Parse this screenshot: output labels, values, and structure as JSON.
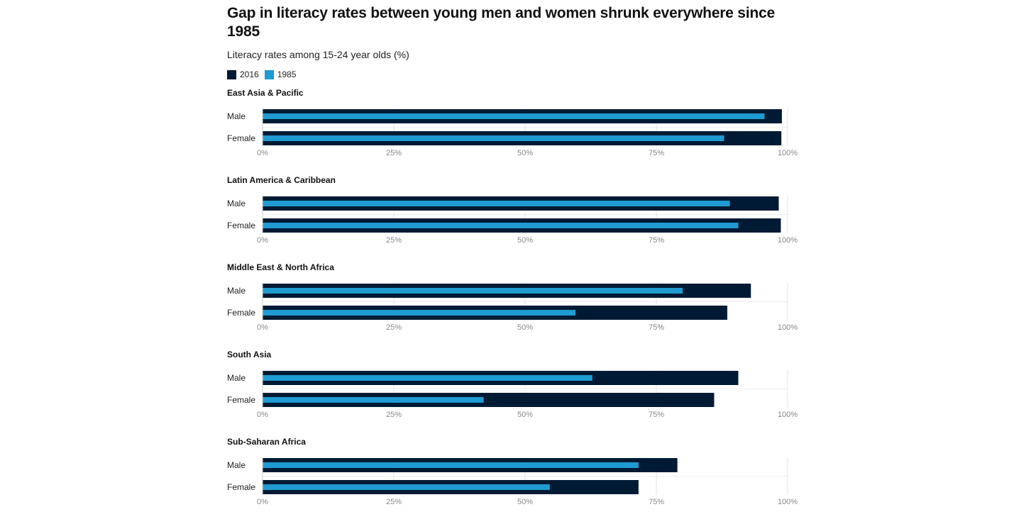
{
  "title": "Gap in literacy rates between young men and women shrunk everywhere since 1985",
  "subtitle": "Literacy rates among 15-24 year olds (%)",
  "colors": {
    "2016": "#001a33",
    "1985": "#1f9bd1",
    "grid": "#e4e4e4",
    "tick": "#888888"
  },
  "legend": [
    {
      "label": "2016",
      "color": "#001a33"
    },
    {
      "label": "1985",
      "color": "#1f9bd1"
    }
  ],
  "chart_data": [
    {
      "type": "bar",
      "title": "East Asia & Pacific",
      "categories": [
        "Male",
        "Female"
      ],
      "series": [
        {
          "name": "2016",
          "values": [
            98.9,
            98.8
          ]
        },
        {
          "name": "1985",
          "values": [
            95.6,
            87.9
          ]
        }
      ],
      "xlim": [
        0,
        100
      ],
      "xticks": [
        "0%",
        "25%",
        "50%",
        "75%",
        "100%"
      ]
    },
    {
      "type": "bar",
      "title": "Latin America & Caribbean",
      "categories": [
        "Male",
        "Female"
      ],
      "series": [
        {
          "name": "2016",
          "values": [
            98.3,
            98.7
          ]
        },
        {
          "name": "1985",
          "values": [
            89.0,
            90.6
          ]
        }
      ],
      "xlim": [
        0,
        100
      ],
      "xticks": [
        "0%",
        "25%",
        "50%",
        "75%",
        "100%"
      ]
    },
    {
      "type": "bar",
      "title": "Middle East & North Africa",
      "categories": [
        "Male",
        "Female"
      ],
      "series": [
        {
          "name": "2016",
          "values": [
            93.0,
            88.5
          ]
        },
        {
          "name": "1985",
          "values": [
            80.0,
            59.6
          ]
        }
      ],
      "xlim": [
        0,
        100
      ],
      "xticks": [
        "0%",
        "25%",
        "50%",
        "75%",
        "100%"
      ]
    },
    {
      "type": "bar",
      "title": "South Asia",
      "categories": [
        "Male",
        "Female"
      ],
      "series": [
        {
          "name": "2016",
          "values": [
            90.6,
            86.0
          ]
        },
        {
          "name": "1985",
          "values": [
            62.8,
            42.1
          ]
        }
      ],
      "xlim": [
        0,
        100
      ],
      "xticks": [
        "0%",
        "25%",
        "50%",
        "75%",
        "100%"
      ]
    },
    {
      "type": "bar",
      "title": "Sub-Saharan Africa",
      "categories": [
        "Male",
        "Female"
      ],
      "series": [
        {
          "name": "2016",
          "values": [
            79.0,
            71.6
          ]
        },
        {
          "name": "1985",
          "values": [
            71.6,
            54.7
          ]
        }
      ],
      "xlim": [
        0,
        100
      ],
      "xticks": [
        "0%",
        "25%",
        "50%",
        "75%",
        "100%"
      ]
    }
  ]
}
